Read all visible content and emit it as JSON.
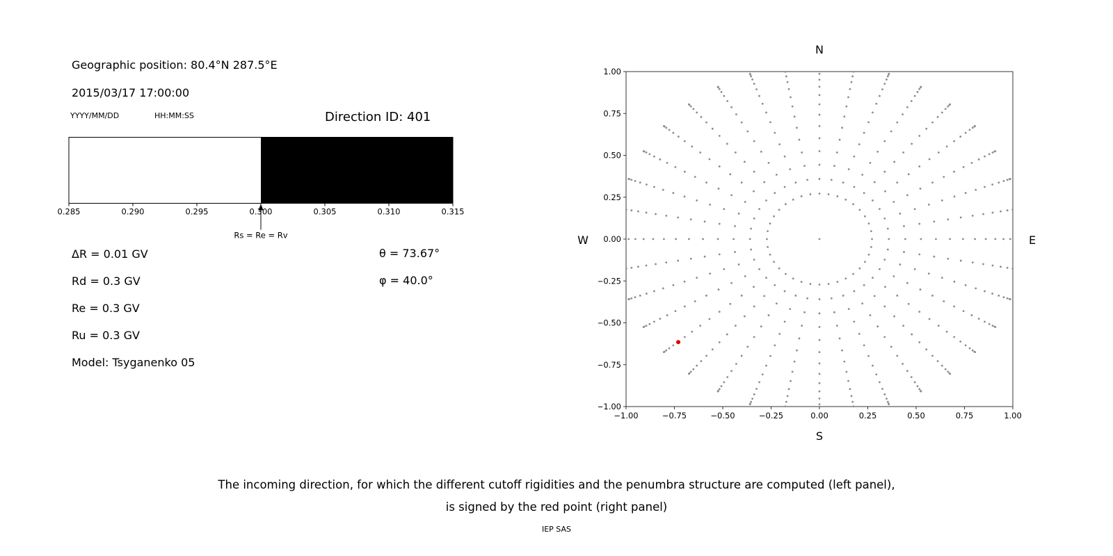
{
  "page": {
    "background": "#ffffff",
    "caption_line1": "The incoming direction, for which the different cutoff rigidities and the penumbra structure are computed (left panel),",
    "caption_line2": "is signed by the red point (right panel)",
    "credit": "IEP SAS"
  },
  "left_panel": {
    "geo_position": "Geographic position: 80.4°N 287.5°E",
    "datetime": "2015/03/17 17:00:00",
    "date_format_label": "YYYY/MM/DD",
    "time_format_label": "HH:MM:SS",
    "direction_id": "Direction ID: 401",
    "params": [
      "ΔR = 0.01 GV",
      "Rd = 0.3 GV",
      "Re = 0.3 GV",
      "Ru = 0.3 GV",
      "Model: Tsyganenko 05"
    ],
    "theta": "θ = 73.67°",
    "phi": "φ = 40.0°"
  },
  "chart_data": [
    {
      "name": "penumbra-bar",
      "type": "bar",
      "title": "",
      "xlabel": "",
      "ylabel": "",
      "xlim": [
        0.285,
        0.315
      ],
      "xtick_values": [
        0.285,
        0.29,
        0.295,
        0.3,
        0.305,
        0.31,
        0.315
      ],
      "xtick_labels": [
        "0.285",
        "0.290",
        "0.295",
        "0.300",
        "0.305",
        "0.310",
        "0.315"
      ],
      "regions": [
        {
          "from": 0.285,
          "to": 0.3,
          "color": "#ffffff"
        },
        {
          "from": 0.3,
          "to": 0.315,
          "color": "#000000"
        }
      ],
      "border_color": "#000000",
      "arrow": {
        "x": 0.3,
        "label": "Rs = Re = Rv"
      }
    },
    {
      "name": "direction-map",
      "type": "scatter",
      "title": "",
      "xlim": [
        -1.0,
        1.0
      ],
      "ylim": [
        -1.0,
        1.0
      ],
      "grid": false,
      "xtick_values": [
        -1.0,
        -0.75,
        -0.5,
        -0.25,
        0.0,
        0.25,
        0.5,
        0.75,
        1.0
      ],
      "xtick_labels": [
        "−1.00",
        "−0.75",
        "−0.50",
        "−0.25",
        "0.00",
        "0.25",
        "0.50",
        "0.75",
        "1.00"
      ],
      "ytick_values": [
        1.0,
        0.75,
        0.5,
        0.25,
        0.0,
        -0.25,
        -0.5,
        -0.75,
        -1.0
      ],
      "ytick_labels": [
        "1.00",
        "0.75",
        "0.50",
        "0.25",
        "0.00",
        "−0.25",
        "−0.50",
        "−0.75",
        "−1.00"
      ],
      "compass": {
        "top": "N",
        "bottom": "S",
        "left": "W",
        "right": "E"
      },
      "grid_points": {
        "include_center_point": true,
        "azimuth_start_deg": 0,
        "azimuth_step_deg": 10,
        "azimuth_count": 36,
        "zenith_start_deg": 15,
        "zenith_step_deg": 5,
        "zenith_end_deg": 90,
        "radius_formula": "radius_scale * sin(zenith)",
        "radius_scale": 1.05,
        "clip_to_axes": true,
        "color": "#8c8c8c",
        "dot_radius_px": 1.4
      },
      "red_point": {
        "x": -0.73,
        "y": -0.615,
        "color": "#e00000",
        "radius_px": 3
      }
    }
  ]
}
